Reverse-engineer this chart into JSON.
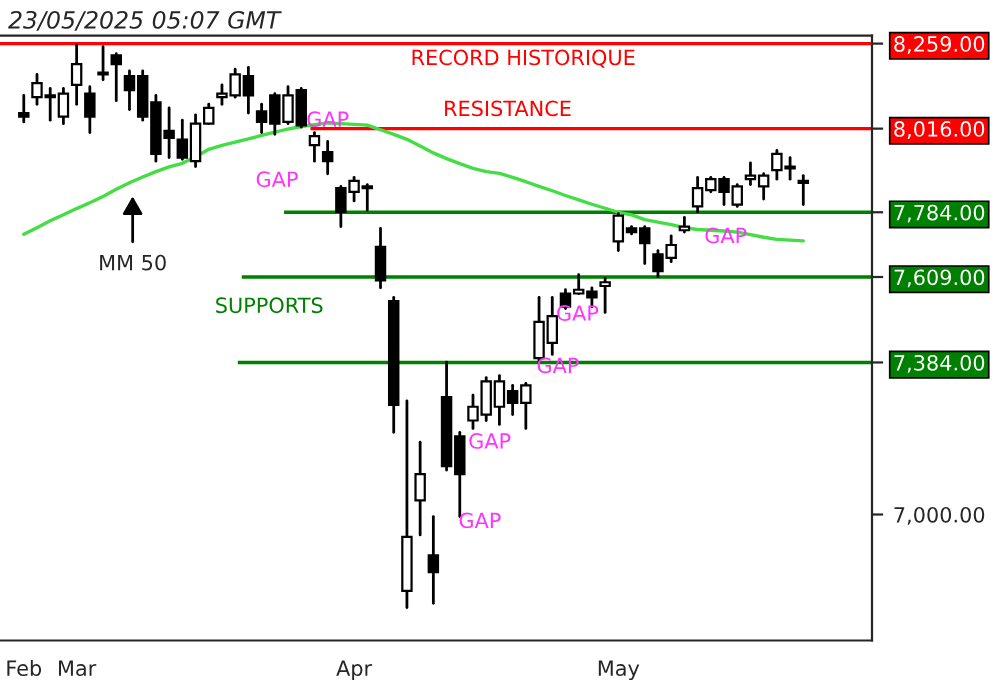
{
  "chart_data": {
    "type": "candlestick",
    "title": "23/05/2025 05:07 GMT",
    "categories": [
      "Feb",
      null,
      null,
      null,
      "Mar",
      null,
      null,
      null,
      null,
      null,
      null,
      null,
      null,
      null,
      null,
      null,
      null,
      null,
      null,
      null,
      null,
      null,
      null,
      null,
      null,
      "Apr",
      null,
      null,
      null,
      null,
      null,
      null,
      null,
      null,
      null,
      null,
      null,
      null,
      null,
      null,
      null,
      null,
      null,
      null,
      null,
      "May",
      null,
      null,
      null,
      null,
      null,
      null,
      null,
      null,
      null,
      null,
      null,
      null,
      null,
      null
    ],
    "ohlc": [
      [
        8060,
        8110,
        8035,
        8050
      ],
      [
        8105,
        8170,
        8085,
        8145
      ],
      [
        8110,
        8130,
        8040,
        8105
      ],
      [
        8050,
        8130,
        8030,
        8115
      ],
      [
        8140,
        8255,
        8085,
        8200
      ],
      [
        8115,
        8135,
        8005,
        8050
      ],
      [
        8175,
        8250,
        8155,
        8170
      ],
      [
        8225,
        8230,
        8095,
        8200
      ],
      [
        8165,
        8180,
        8070,
        8125
      ],
      [
        8165,
        8180,
        8040,
        8050
      ],
      [
        8090,
        8110,
        7925,
        7945
      ],
      [
        8010,
        8075,
        7935,
        7990
      ],
      [
        7985,
        8040,
        7930,
        7935
      ],
      [
        7925,
        8055,
        7910,
        8030
      ],
      [
        8030,
        8085,
        8030,
        8075
      ],
      [
        8105,
        8140,
        8085,
        8115
      ],
      [
        8110,
        8185,
        8105,
        8170
      ],
      [
        8165,
        8190,
        8060,
        8110
      ],
      [
        8065,
        8085,
        8005,
        8035
      ],
      [
        8110,
        8115,
        8000,
        8030
      ],
      [
        8035,
        8135,
        8030,
        8110
      ],
      [
        8125,
        8130,
        8020,
        8025
      ],
      [
        7970,
        8005,
        7925,
        7995
      ],
      [
        7950,
        7980,
        7890,
        7925
      ],
      [
        7850,
        7855,
        7745,
        7785
      ],
      [
        7840,
        7880,
        7815,
        7870
      ],
      [
        7855,
        7860,
        7790,
        7850
      ],
      [
        7690,
        7740,
        7580,
        7600
      ],
      [
        7545,
        7555,
        7205,
        7275
      ],
      [
        6815,
        7285,
        6775,
        6945
      ],
      [
        7035,
        7180,
        6950,
        7100
      ],
      [
        6900,
        6995,
        6785,
        6860
      ],
      [
        7295,
        7385,
        7110,
        7120
      ],
      [
        7195,
        7205,
        6995,
        7100
      ],
      [
        7235,
        7300,
        7215,
        7270
      ],
      [
        7250,
        7345,
        7235,
        7335
      ],
      [
        7270,
        7350,
        7225,
        7335
      ],
      [
        7310,
        7325,
        7250,
        7280
      ],
      [
        7280,
        7330,
        7215,
        7325
      ],
      [
        7395,
        7555,
        7385,
        7490
      ],
      [
        7435,
        7555,
        7405,
        7505
      ],
      [
        7565,
        7575,
        7525,
        7530
      ],
      [
        7565,
        7615,
        7565,
        7575
      ],
      [
        7570,
        7580,
        7530,
        7555
      ],
      [
        7585,
        7605,
        7515,
        7595
      ],
      [
        7705,
        7780,
        7680,
        7775
      ],
      [
        7740,
        7745,
        7725,
        7730
      ],
      [
        7740,
        7745,
        7645,
        7700
      ],
      [
        7670,
        7680,
        7610,
        7625
      ],
      [
        7660,
        7720,
        7650,
        7695
      ],
      [
        7735,
        7770,
        7730,
        7745
      ],
      [
        7800,
        7880,
        7785,
        7850
      ],
      [
        7845,
        7880,
        7840,
        7875
      ],
      [
        7875,
        7880,
        7805,
        7840
      ],
      [
        7805,
        7860,
        7800,
        7855
      ],
      [
        7875,
        7920,
        7860,
        7885
      ],
      [
        7855,
        7890,
        7820,
        7885
      ],
      [
        7900,
        7955,
        7875,
        7945
      ],
      [
        7910,
        7935,
        7875,
        7905
      ],
      [
        7870,
        7885,
        7805,
        7865
      ]
    ],
    "series": [
      {
        "type": "line",
        "name": "MM 50",
        "color": "#44dd44",
        "values": [
          7724,
          7742,
          7761,
          7777,
          7794,
          7810,
          7827,
          7847,
          7865,
          7881,
          7896,
          7909,
          7919,
          7937,
          7958,
          7969,
          7978,
          7987,
          7997,
          8006,
          8015,
          8022,
          8027,
          8032,
          8030,
          8028,
          8026,
          8013,
          8000,
          7986,
          7967,
          7948,
          7932,
          7918,
          7905,
          7896,
          7891,
          7880,
          7868,
          7855,
          7843,
          7830,
          7818,
          7806,
          7795,
          7784,
          7777,
          7764,
          7757,
          7750,
          7742,
          7737,
          7735,
          7733,
          7730,
          7723,
          7716,
          7710,
          7708,
          7706
        ]
      }
    ],
    "log": "y",
    "ylim": [
      6697,
      8282
    ],
    "yticks": [
      {
        "value": 7000,
        "label": "7,000.00"
      },
      {
        "value": 7384,
        "label": "7,384.00"
      },
      {
        "value": 7609,
        "label": "7,609.00"
      },
      {
        "value": 7784,
        "label": "7,784.00"
      },
      {
        "value": 8016,
        "label": "8,016.00"
      },
      {
        "value": 8259,
        "label": "8,259.00"
      }
    ],
    "ref_lines": [
      {
        "axis": "y",
        "value": 8259,
        "label": "RECORD HISTORIQUE",
        "color": "#ff0000"
      },
      {
        "axis": "y",
        "value": 8016,
        "label": "RESISTANCE",
        "color": "#ff0000"
      },
      {
        "axis": "y",
        "value": 7784,
        "color": "#008000"
      },
      {
        "axis": "y",
        "value": 7609,
        "color": "#008000"
      },
      {
        "axis": "y",
        "value": 7384,
        "color": "#008000"
      }
    ],
    "annotations": [
      "SUPPORTS",
      "GAP",
      "GAP",
      "GAP",
      "GAP",
      "GAP",
      "GAP",
      "GAP"
    ]
  }
}
